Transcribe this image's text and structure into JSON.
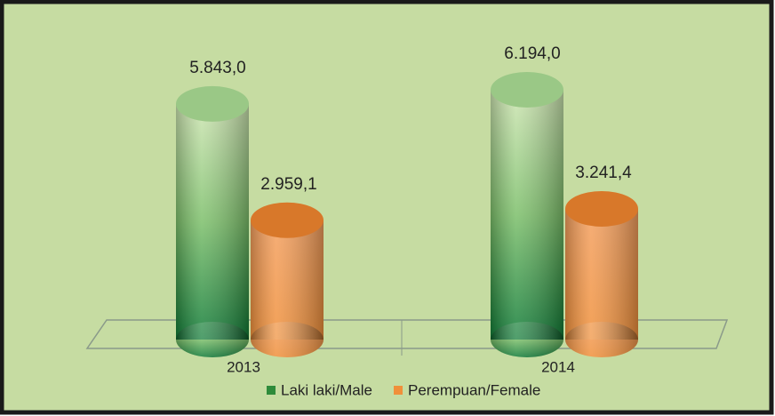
{
  "chart_data": {
    "type": "bar3d",
    "categories": [
      "2013",
      "2014"
    ],
    "series": [
      {
        "name": "Laki laki/Male",
        "color": "#2e8b3a",
        "values": [
          5843.0,
          6194.0
        ],
        "value_labels": [
          "5.843,0",
          "6.194,0"
        ]
      },
      {
        "name": "Perempuan/Female",
        "color": "#f0903a",
        "values": [
          2959.1,
          3241.4
        ],
        "value_labels": [
          "2.959,1",
          "3.241,4"
        ]
      }
    ]
  }
}
